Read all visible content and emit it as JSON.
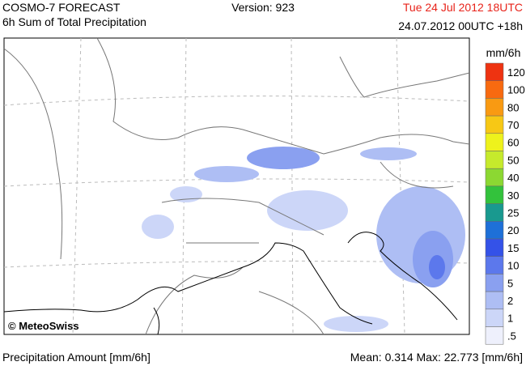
{
  "header": {
    "model": "COSMO-7 FORECAST",
    "product": "6h Sum of Total Precipitation",
    "version": "Version: 923",
    "valid_time": "Tue 24 Jul 2012 18UTC",
    "run_time": "24.07.2012 00UTC +18h"
  },
  "legend": {
    "unit": "mm/6h",
    "items": [
      {
        "label": "120",
        "color": "#ee3311"
      },
      {
        "label": "100",
        "color": "#f86a10"
      },
      {
        "label": "80",
        "color": "#f99a12"
      },
      {
        "label": "70",
        "color": "#f7c815"
      },
      {
        "label": "60",
        "color": "#eef21c"
      },
      {
        "label": "50",
        "color": "#c6ea2c"
      },
      {
        "label": "40",
        "color": "#8cd832"
      },
      {
        "label": "30",
        "color": "#33c23c"
      },
      {
        "label": "25",
        "color": "#19998f"
      },
      {
        "label": "20",
        "color": "#1e70d8"
      },
      {
        "label": "15",
        "color": "#3452e8"
      },
      {
        "label": "10",
        "color": "#5c78ec"
      },
      {
        "label": "5",
        "color": "#8aa0f0"
      },
      {
        "label": "2",
        "color": "#aebef4"
      },
      {
        "label": "1",
        "color": "#ccd6f8"
      },
      {
        "label": ".5",
        "color": "#eef0fc"
      }
    ]
  },
  "map": {
    "credit": "© MeteoSwiss"
  },
  "footer": {
    "left": "Precipitation Amount [mm/6h]",
    "right": "Mean:  0.314 Max:  22.773 [mm/6h]"
  }
}
